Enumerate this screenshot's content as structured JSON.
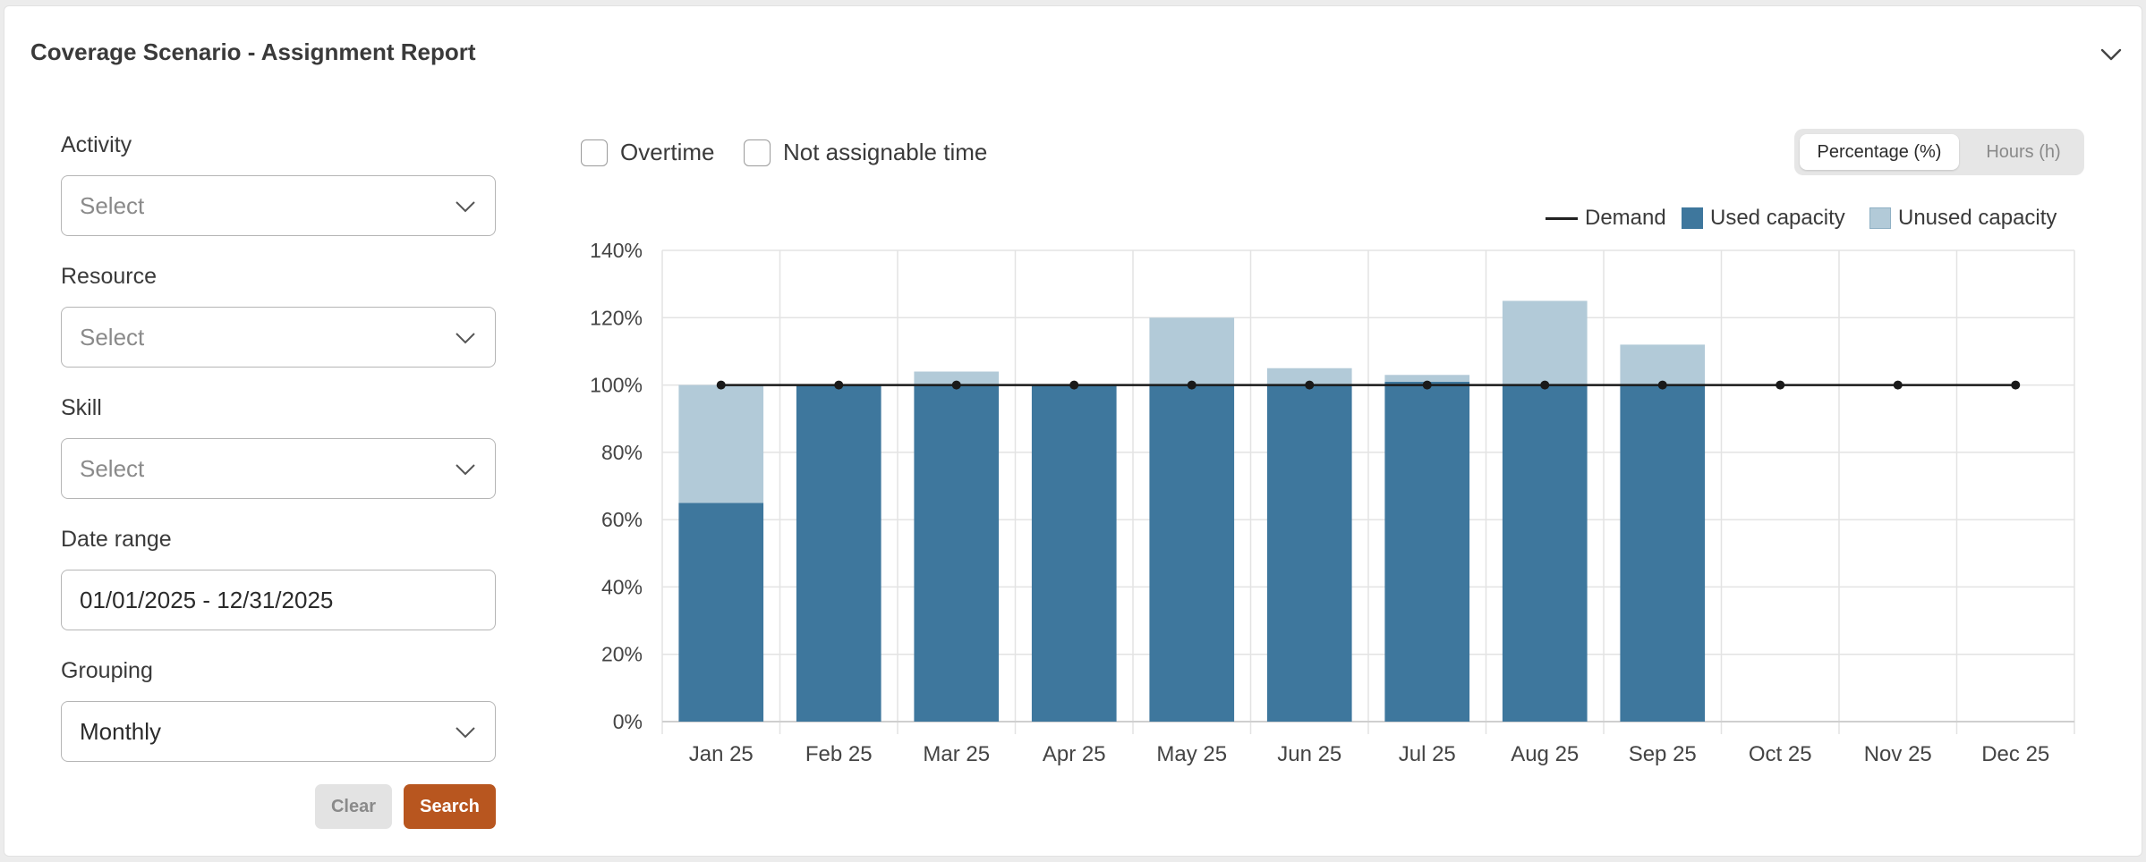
{
  "title": "Coverage Scenario - Assignment Report",
  "filters": {
    "activity": {
      "label": "Activity",
      "placeholder": "Select"
    },
    "resource": {
      "label": "Resource",
      "placeholder": "Select"
    },
    "skill": {
      "label": "Skill",
      "placeholder": "Select"
    },
    "date_range": {
      "label": "Date range",
      "value": "01/01/2025 - 12/31/2025"
    },
    "grouping": {
      "label": "Grouping",
      "value": "Monthly"
    },
    "clear_label": "Clear",
    "search_label": "Search"
  },
  "options": {
    "overtime_label": "Overtime",
    "overtime_checked": false,
    "not_assignable_label": "Not assignable time",
    "not_assignable_checked": false
  },
  "unit_toggle": {
    "percentage_label": "Percentage (%)",
    "hours_label": "Hours (h)",
    "selected": "Percentage (%)"
  },
  "colors": {
    "accent": "#b8561f",
    "used": "#3e779d",
    "unused": "#b2cad8",
    "demand": "#1a1a1a"
  },
  "chart_data": {
    "type": "bar",
    "stacked": true,
    "categories": [
      "Jan 25",
      "Feb 25",
      "Mar 25",
      "Apr 25",
      "May 25",
      "Jun 25",
      "Jul 25",
      "Aug 25",
      "Sep 25",
      "Oct 25",
      "Nov 25",
      "Dec 25"
    ],
    "series": [
      {
        "name": "Used capacity",
        "type": "bar",
        "values": [
          65,
          100,
          100,
          100,
          100,
          100,
          101,
          100,
          100,
          null,
          null,
          null
        ]
      },
      {
        "name": "Unused capacity",
        "type": "bar",
        "values": [
          35,
          0,
          4,
          0,
          20,
          5,
          2,
          25,
          12,
          null,
          null,
          null
        ]
      },
      {
        "name": "Demand",
        "type": "line",
        "values": [
          100,
          100,
          100,
          100,
          100,
          100,
          100,
          100,
          100,
          100,
          100,
          100
        ]
      }
    ],
    "legend": [
      "Demand",
      "Used capacity",
      "Unused capacity"
    ],
    "legend_position": "top-right",
    "y_ticks": [
      "0%",
      "20%",
      "40%",
      "60%",
      "80%",
      "100%",
      "120%",
      "140%"
    ],
    "ylim": [
      0,
      140
    ],
    "grid": true
  }
}
